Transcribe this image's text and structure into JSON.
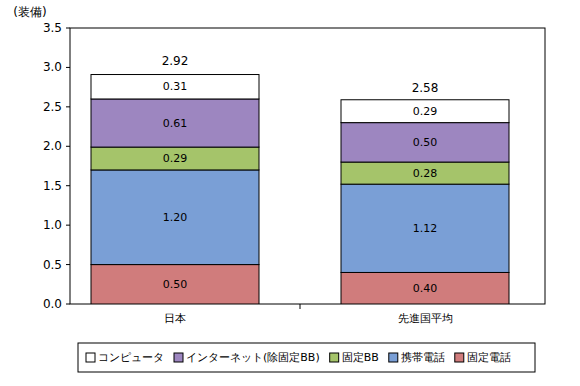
{
  "chart_data": {
    "type": "bar",
    "stacked": true,
    "data_labels": true,
    "grid": false,
    "legend": "bottom",
    "y_label": "(装備)",
    "categories": [
      "日本",
      "先進国平均"
    ],
    "totals": [
      2.92,
      2.58
    ],
    "ylim": [
      0,
      3.5
    ],
    "yticks": [
      {
        "value": 0,
        "label": "0.0"
      },
      {
        "value": 0.5,
        "label": "0.5"
      },
      {
        "value": 1,
        "label": "1.0"
      },
      {
        "value": 1.5,
        "label": "1.5"
      },
      {
        "value": 2,
        "label": "2.0"
      },
      {
        "value": 2.5,
        "label": "2.5"
      },
      {
        "value": 3,
        "label": "3.0"
      },
      {
        "value": 3.5,
        "label": "3.5"
      }
    ],
    "series": [
      {
        "name": "固定電話",
        "color": "#d07c7c",
        "values": [
          0.5,
          0.4
        ],
        "value_labels": [
          "0.50",
          "0.40"
        ]
      },
      {
        "name": "携帯電話",
        "color": "#7a9fd6",
        "values": [
          1.2,
          1.12
        ],
        "value_labels": [
          "1.20",
          "1.12"
        ]
      },
      {
        "name": "固定BB",
        "color": "#a5c46a",
        "values": [
          0.29,
          0.28
        ],
        "value_labels": [
          "0.29",
          "0.28"
        ]
      },
      {
        "name": "インターネット(除固定BB)",
        "color": "#9d86c0",
        "values": [
          0.61,
          0.5
        ],
        "value_labels": [
          "0.61",
          "0.50"
        ]
      },
      {
        "name": "コンピュータ",
        "color": "#ffffff",
        "values": [
          0.31,
          0.29
        ],
        "value_labels": [
          "0.31",
          "0.29"
        ]
      }
    ]
  }
}
